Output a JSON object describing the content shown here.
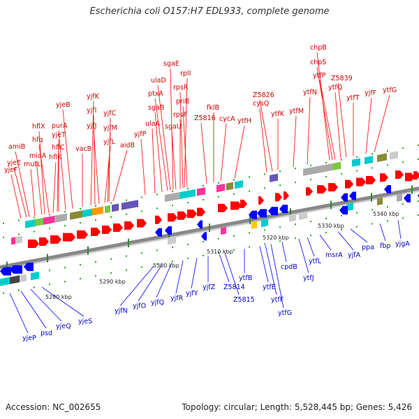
{
  "title": "Escherichia coli O157:H7 EDL933, complete genome",
  "footer": {
    "accession": "Accession: NC_002655",
    "topology": "Topology: circular; Length: 5,528,445 bp; Genes: 5,426"
  },
  "colors": {
    "forward": "#ff0000",
    "reverse": "#0000ff",
    "backbone": "#888888"
  },
  "map": {
    "scale_labels": [
      "5280 kbp",
      "5290 kbp",
      "5300 kbp",
      "5310 kbp",
      "5320 kbp",
      "5330 kbp",
      "5340 kbp"
    ],
    "top_genes": [
      "yjeF",
      "yjeE",
      "amiB",
      "mutL",
      "miaA",
      "hflX",
      "hflK",
      "hfq",
      "hflC",
      "purA",
      "yjeT",
      "yjeB",
      "vacB",
      "yjfK",
      "yjfI",
      "yjfJ",
      "yjfL",
      "yjfC",
      "yjfM",
      "aidB",
      "yjfP",
      "ulaA",
      "sgaB",
      "ptxA",
      "ulaD",
      "sgaE",
      "sgaU",
      "rpsF",
      "rpsR",
      "rplI",
      "priB",
      "Z5816",
      "fklB",
      "cycA",
      "ytfH",
      "cysQ",
      "Z5826",
      "ytfK",
      "ytfM",
      "ytfN",
      "chpB",
      "chpS",
      "ytfP",
      "ytfQ",
      "Z5839",
      "ytfT",
      "yjfF",
      "ytfG"
    ],
    "bottom_genes": [
      "yjeP",
      "psd",
      "yjeQ",
      "yjeS",
      "yjfN",
      "yjfO",
      "yjfQ",
      "yjfR",
      "yjfY",
      "yjfZ",
      "Z5814",
      "Z5815",
      "ytfB",
      "ytfE",
      "ytfF",
      "ytfG",
      "cpdB",
      "ytfJ",
      "ytfL",
      "msrA",
      "yjfA",
      "ppa",
      "fbp",
      "yjgA"
    ]
  }
}
